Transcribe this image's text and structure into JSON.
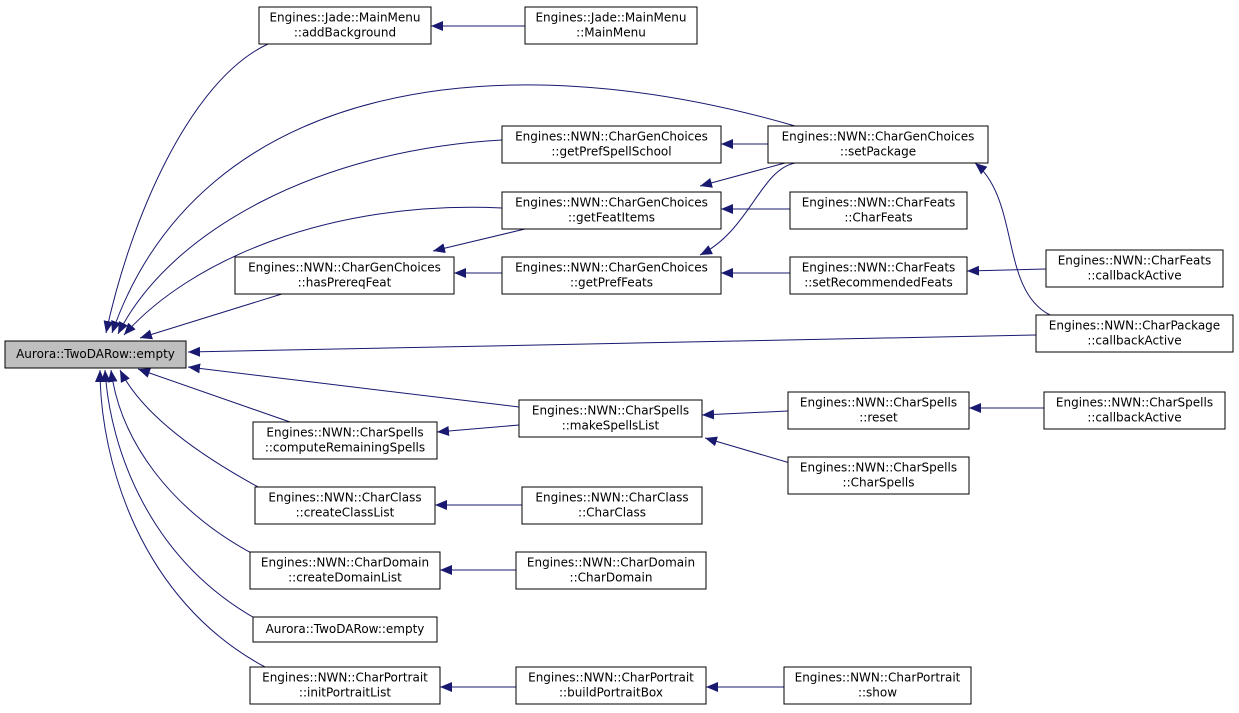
{
  "nodes": [
    {
      "lines": [
        "Aurora::TwoDARow::empty"
      ]
    },
    {
      "lines": [
        "Engines::Jade::MainMenu",
        "::addBackground"
      ]
    },
    {
      "lines": [
        "Engines::Jade::MainMenu",
        "::MainMenu"
      ]
    },
    {
      "lines": [
        "Engines::NWN::CharGenChoices",
        "::getPrefSpellSchool"
      ]
    },
    {
      "lines": [
        "Engines::NWN::CharGenChoices",
        "::setPackage"
      ]
    },
    {
      "lines": [
        "Engines::NWN::CharGenChoices",
        "::getFeatItems"
      ]
    },
    {
      "lines": [
        "Engines::NWN::CharFeats",
        "::CharFeats"
      ]
    },
    {
      "lines": [
        "Engines::NWN::CharGenChoices",
        "::hasPrereqFeat"
      ]
    },
    {
      "lines": [
        "Engines::NWN::CharGenChoices",
        "::getPrefFeats"
      ]
    },
    {
      "lines": [
        "Engines::NWN::CharFeats",
        "::setRecommendedFeats"
      ]
    },
    {
      "lines": [
        "Engines::NWN::CharFeats",
        "::callbackActive"
      ]
    },
    {
      "lines": [
        "Engines::NWN::CharPackage",
        "::callbackActive"
      ]
    },
    {
      "lines": [
        "Engines::NWN::CharSpells",
        "::computeRemainingSpells"
      ]
    },
    {
      "lines": [
        "Engines::NWN::CharSpells",
        "::makeSpellsList"
      ]
    },
    {
      "lines": [
        "Engines::NWN::CharSpells",
        "::reset"
      ]
    },
    {
      "lines": [
        "Engines::NWN::CharSpells",
        "::callbackActive"
      ]
    },
    {
      "lines": [
        "Engines::NWN::CharSpells",
        "::CharSpells"
      ]
    },
    {
      "lines": [
        "Engines::NWN::CharClass",
        "::createClassList"
      ]
    },
    {
      "lines": [
        "Engines::NWN::CharClass",
        "::CharClass"
      ]
    },
    {
      "lines": [
        "Engines::NWN::CharDomain",
        "::createDomainList"
      ]
    },
    {
      "lines": [
        "Engines::NWN::CharDomain",
        "::CharDomain"
      ]
    },
    {
      "lines": [
        "Aurora::TwoDARow::empty"
      ]
    },
    {
      "lines": [
        "Engines::NWN::CharPortrait",
        "::initPortraitList"
      ]
    },
    {
      "lines": [
        "Engines::NWN::CharPortrait",
        "::buildPortraitBox"
      ]
    },
    {
      "lines": [
        "Engines::NWN::CharPortrait",
        "::show"
      ]
    }
  ]
}
